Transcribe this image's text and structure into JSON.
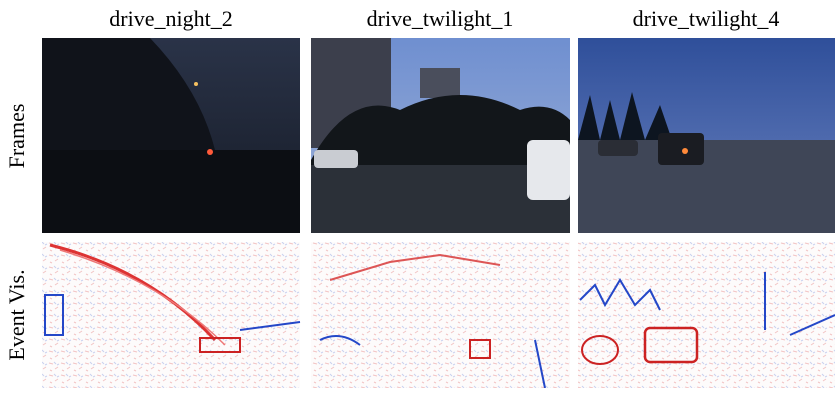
{
  "column_titles": [
    "drive_night_2",
    "drive_twilight_1",
    "drive_twilight_4"
  ],
  "row_labels": [
    "Frames",
    "Event Vis."
  ]
}
